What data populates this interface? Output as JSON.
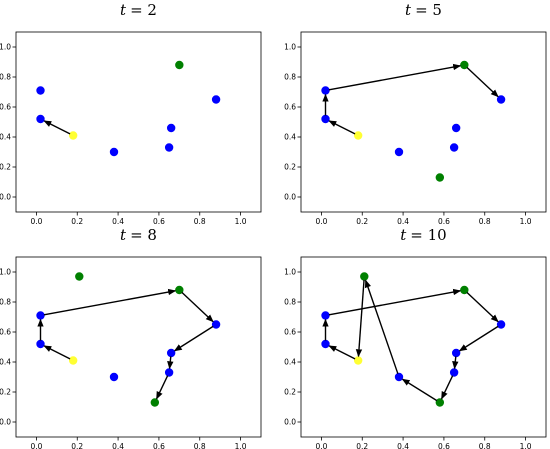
{
  "colors": {
    "regular": "#0000ff",
    "start": "#ffff33",
    "visited": "#008000",
    "arrow": "#000000",
    "axes": "#000000",
    "background": "#ffffff"
  },
  "chart_data": [
    {
      "type": "scatter",
      "title": "t = 2",
      "title_var": "t",
      "title_value": "= 2",
      "xlim": [
        -0.1,
        1.1
      ],
      "ylim": [
        -0.1,
        1.1
      ],
      "xticks": [
        "0.0",
        "0.2",
        "0.4",
        "0.6",
        "0.8",
        "1.0"
      ],
      "yticks": [
        "0.0",
        "0.2",
        "0.4",
        "0.6",
        "0.8",
        "1.0"
      ],
      "points": [
        {
          "x": 0.02,
          "y": 0.71,
          "color": "regular"
        },
        {
          "x": 0.02,
          "y": 0.52,
          "color": "regular"
        },
        {
          "x": 0.18,
          "y": 0.41,
          "color": "start"
        },
        {
          "x": 0.38,
          "y": 0.3,
          "color": "regular"
        },
        {
          "x": 0.65,
          "y": 0.33,
          "color": "regular"
        },
        {
          "x": 0.66,
          "y": 0.46,
          "color": "regular"
        },
        {
          "x": 0.7,
          "y": 0.88,
          "color": "visited"
        },
        {
          "x": 0.88,
          "y": 0.65,
          "color": "regular"
        }
      ],
      "arrows": [
        {
          "from": [
            0.18,
            0.41
          ],
          "to": [
            0.02,
            0.52
          ]
        }
      ]
    },
    {
      "type": "scatter",
      "title": "t = 5",
      "title_var": "t",
      "title_value": "= 5",
      "xlim": [
        -0.1,
        1.1
      ],
      "ylim": [
        -0.1,
        1.1
      ],
      "xticks": [
        "0.0",
        "0.2",
        "0.4",
        "0.6",
        "0.8",
        "1.0"
      ],
      "yticks": [
        "0.0",
        "0.2",
        "0.4",
        "0.6",
        "0.8",
        "1.0"
      ],
      "points": [
        {
          "x": 0.02,
          "y": 0.71,
          "color": "regular"
        },
        {
          "x": 0.02,
          "y": 0.52,
          "color": "regular"
        },
        {
          "x": 0.18,
          "y": 0.41,
          "color": "start"
        },
        {
          "x": 0.38,
          "y": 0.3,
          "color": "regular"
        },
        {
          "x": 0.65,
          "y": 0.33,
          "color": "regular"
        },
        {
          "x": 0.66,
          "y": 0.46,
          "color": "regular"
        },
        {
          "x": 0.7,
          "y": 0.88,
          "color": "visited"
        },
        {
          "x": 0.88,
          "y": 0.65,
          "color": "regular"
        },
        {
          "x": 0.58,
          "y": 0.13,
          "color": "visited"
        }
      ],
      "arrows": [
        {
          "from": [
            0.18,
            0.41
          ],
          "to": [
            0.02,
            0.52
          ]
        },
        {
          "from": [
            0.02,
            0.52
          ],
          "to": [
            0.02,
            0.71
          ]
        },
        {
          "from": [
            0.02,
            0.71
          ],
          "to": [
            0.7,
            0.88
          ]
        },
        {
          "from": [
            0.7,
            0.88
          ],
          "to": [
            0.88,
            0.65
          ]
        }
      ]
    },
    {
      "type": "scatter",
      "title": "t = 8",
      "title_var": "t",
      "title_value": "= 8",
      "xlim": [
        -0.1,
        1.1
      ],
      "ylim": [
        -0.1,
        1.1
      ],
      "xticks": [
        "0.0",
        "0.2",
        "0.4",
        "0.6",
        "0.8",
        "1.0"
      ],
      "yticks": [
        "0.0",
        "0.2",
        "0.4",
        "0.6",
        "0.8",
        "1.0"
      ],
      "points": [
        {
          "x": 0.02,
          "y": 0.71,
          "color": "regular"
        },
        {
          "x": 0.02,
          "y": 0.52,
          "color": "regular"
        },
        {
          "x": 0.18,
          "y": 0.41,
          "color": "start"
        },
        {
          "x": 0.38,
          "y": 0.3,
          "color": "regular"
        },
        {
          "x": 0.65,
          "y": 0.33,
          "color": "regular"
        },
        {
          "x": 0.66,
          "y": 0.46,
          "color": "regular"
        },
        {
          "x": 0.7,
          "y": 0.88,
          "color": "visited"
        },
        {
          "x": 0.88,
          "y": 0.65,
          "color": "regular"
        },
        {
          "x": 0.58,
          "y": 0.13,
          "color": "visited"
        },
        {
          "x": 0.21,
          "y": 0.97,
          "color": "visited"
        }
      ],
      "arrows": [
        {
          "from": [
            0.18,
            0.41
          ],
          "to": [
            0.02,
            0.52
          ]
        },
        {
          "from": [
            0.02,
            0.52
          ],
          "to": [
            0.02,
            0.71
          ]
        },
        {
          "from": [
            0.02,
            0.71
          ],
          "to": [
            0.7,
            0.88
          ]
        },
        {
          "from": [
            0.7,
            0.88
          ],
          "to": [
            0.88,
            0.65
          ]
        },
        {
          "from": [
            0.88,
            0.65
          ],
          "to": [
            0.66,
            0.46
          ]
        },
        {
          "from": [
            0.66,
            0.46
          ],
          "to": [
            0.65,
            0.33
          ]
        },
        {
          "from": [
            0.65,
            0.33
          ],
          "to": [
            0.58,
            0.13
          ]
        }
      ]
    },
    {
      "type": "scatter",
      "title": "t = 10",
      "title_var": "t",
      "title_value": "= 10",
      "xlim": [
        -0.1,
        1.1
      ],
      "ylim": [
        -0.1,
        1.1
      ],
      "xticks": [
        "0.0",
        "0.2",
        "0.4",
        "0.6",
        "0.8",
        "1.0"
      ],
      "yticks": [
        "0.0",
        "0.2",
        "0.4",
        "0.6",
        "0.8",
        "1.0"
      ],
      "points": [
        {
          "x": 0.02,
          "y": 0.71,
          "color": "regular"
        },
        {
          "x": 0.02,
          "y": 0.52,
          "color": "regular"
        },
        {
          "x": 0.18,
          "y": 0.41,
          "color": "start"
        },
        {
          "x": 0.38,
          "y": 0.3,
          "color": "regular"
        },
        {
          "x": 0.65,
          "y": 0.33,
          "color": "regular"
        },
        {
          "x": 0.66,
          "y": 0.46,
          "color": "regular"
        },
        {
          "x": 0.7,
          "y": 0.88,
          "color": "visited"
        },
        {
          "x": 0.88,
          "y": 0.65,
          "color": "regular"
        },
        {
          "x": 0.58,
          "y": 0.13,
          "color": "visited"
        },
        {
          "x": 0.21,
          "y": 0.97,
          "color": "visited"
        }
      ],
      "arrows": [
        {
          "from": [
            0.18,
            0.41
          ],
          "to": [
            0.02,
            0.52
          ]
        },
        {
          "from": [
            0.02,
            0.52
          ],
          "to": [
            0.02,
            0.71
          ]
        },
        {
          "from": [
            0.02,
            0.71
          ],
          "to": [
            0.7,
            0.88
          ]
        },
        {
          "from": [
            0.7,
            0.88
          ],
          "to": [
            0.88,
            0.65
          ]
        },
        {
          "from": [
            0.88,
            0.65
          ],
          "to": [
            0.66,
            0.46
          ]
        },
        {
          "from": [
            0.66,
            0.46
          ],
          "to": [
            0.65,
            0.33
          ]
        },
        {
          "from": [
            0.65,
            0.33
          ],
          "to": [
            0.58,
            0.13
          ]
        },
        {
          "from": [
            0.58,
            0.13
          ],
          "to": [
            0.38,
            0.3
          ]
        },
        {
          "from": [
            0.38,
            0.3
          ],
          "to": [
            0.21,
            0.97
          ]
        },
        {
          "from": [
            0.21,
            0.97
          ],
          "to": [
            0.18,
            0.41
          ]
        }
      ]
    }
  ]
}
